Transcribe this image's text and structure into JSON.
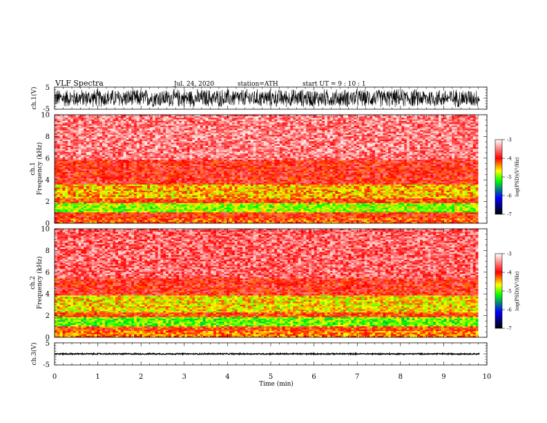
{
  "header": {
    "title": "VLF  Spectra",
    "date": "Jul.  24,  2020",
    "station": "station=ATH",
    "start": "start  UT  =    9  :  10 : 1"
  },
  "colors": {
    "background": "#ffffff",
    "waveform": "#000000",
    "frame": "#000000",
    "colormap": [
      "#000000",
      "#0000ff",
      "#00ff00",
      "#ffff00",
      "#ff0000",
      "#ffffff"
    ]
  },
  "chart_data": [
    {
      "type": "line",
      "panel": "ch1-waveform",
      "ylabel": "ch.1(V)",
      "ylim": [
        -5,
        5
      ],
      "yticks": [
        "5",
        "-5"
      ],
      "xlim": [
        0,
        10
      ],
      "description_values": {
        "approx_amplitude_V": 4.5,
        "mean_V": 0
      }
    },
    {
      "type": "heatmap",
      "panel": "ch1-spectrogram",
      "ylabel": "ch.1\nFrequency  (kHz)",
      "ylabel_lines": [
        "ch.1",
        "Frequency  (kHz)"
      ],
      "ylim": [
        0,
        10
      ],
      "yticks": [
        "0",
        "2",
        "4",
        "6",
        "8",
        "10"
      ],
      "xlim": [
        0,
        9.8
      ],
      "frequency_bands_kHz": [
        {
          "from": 0,
          "to": 0.5,
          "log_psd": -4.2
        },
        {
          "from": 0.5,
          "to": 1.0,
          "log_psd": -4.0
        },
        {
          "from": 1.0,
          "to": 1.8,
          "log_psd": -4.9
        },
        {
          "from": 1.8,
          "to": 2.3,
          "log_psd": -4.1
        },
        {
          "from": 2.3,
          "to": 3.6,
          "log_psd": -4.5
        },
        {
          "from": 3.6,
          "to": 5.8,
          "log_psd": -3.9
        },
        {
          "from": 5.8,
          "to": 10,
          "log_psd": -3.5
        }
      ],
      "colorbar": {
        "label": "log(PSD)(V²/Hz)",
        "ticks": [
          "-3",
          "-4",
          "-5",
          "-6",
          "-7"
        ],
        "range": [
          -7,
          -3
        ]
      }
    },
    {
      "type": "heatmap",
      "panel": "ch2-spectrogram",
      "ylabel_lines": [
        "ch.2",
        "Frequency  (kHz)"
      ],
      "ylim": [
        0,
        10
      ],
      "yticks": [
        "0",
        "2",
        "4",
        "6",
        "8",
        "10"
      ],
      "xlim": [
        0,
        9.8
      ],
      "frequency_bands_kHz": [
        {
          "from": 0,
          "to": 0.6,
          "log_psd": -4.3
        },
        {
          "from": 0.6,
          "to": 1.0,
          "log_psd": -4.1
        },
        {
          "from": 1.0,
          "to": 1.8,
          "log_psd": -5.0
        },
        {
          "from": 1.8,
          "to": 2.3,
          "log_psd": -4.1
        },
        {
          "from": 2.3,
          "to": 3.8,
          "log_psd": -4.6
        },
        {
          "from": 3.8,
          "to": 5.5,
          "log_psd": -3.9
        },
        {
          "from": 5.5,
          "to": 10,
          "log_psd": -3.6
        }
      ],
      "colorbar": {
        "label": "log(PSD)(V²/Hz)",
        "ticks": [
          "-3",
          "-4",
          "-5",
          "-6",
          "-7"
        ],
        "range": [
          -7,
          -3
        ]
      }
    },
    {
      "type": "line",
      "panel": "ch3-waveform",
      "ylabel": "ch.3(V)",
      "ylim": [
        -5,
        5
      ],
      "yticks": [
        "5",
        "-5"
      ],
      "xlim": [
        0,
        10
      ],
      "description_values": {
        "approx_amplitude_V": 0.3,
        "mean_V": 0
      }
    }
  ],
  "xaxis": {
    "label": "Time  (min)",
    "ticks": [
      "0",
      "1",
      "2",
      "3",
      "4",
      "5",
      "6",
      "7",
      "8",
      "9",
      "10"
    ]
  }
}
